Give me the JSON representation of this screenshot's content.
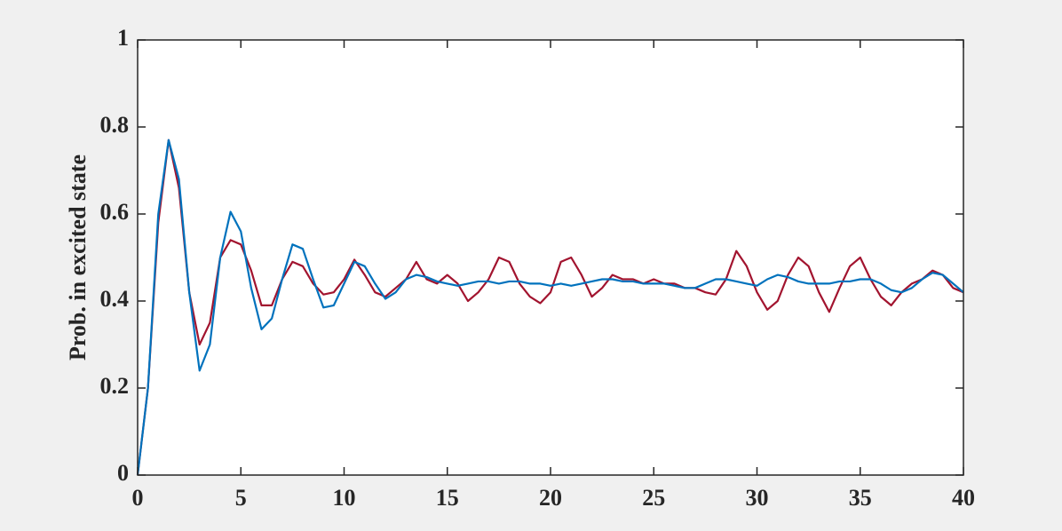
{
  "chart_data": {
    "type": "line",
    "ylabel": "Prob. in excited state",
    "x": [
      0,
      0.5,
      1,
      1.5,
      2,
      2.5,
      3,
      3.5,
      4,
      4.5,
      5,
      5.5,
      6,
      6.5,
      7,
      7.5,
      8,
      8.5,
      9,
      9.5,
      10,
      10.5,
      11,
      11.5,
      12,
      12.5,
      13,
      13.5,
      14,
      14.5,
      15,
      15.5,
      16,
      16.5,
      17,
      17.5,
      18,
      18.5,
      19,
      19.5,
      20,
      20.5,
      21,
      21.5,
      22,
      22.5,
      23,
      23.5,
      24,
      24.5,
      25,
      25.5,
      26,
      26.5,
      27,
      27.5,
      28,
      28.5,
      29,
      29.5,
      30,
      30.5,
      31,
      31.5,
      32,
      32.5,
      33,
      33.5,
      34,
      34.5,
      35,
      35.5,
      36,
      36.5,
      37,
      37.5,
      38,
      38.5,
      39,
      39.5,
      40
    ],
    "series": [
      {
        "color": "#a2142f",
        "values": [
          0,
          0.2,
          0.58,
          0.77,
          0.66,
          0.42,
          0.3,
          0.35,
          0.5,
          0.54,
          0.53,
          0.47,
          0.39,
          0.39,
          0.45,
          0.49,
          0.48,
          0.44,
          0.415,
          0.42,
          0.45,
          0.495,
          0.46,
          0.42,
          0.41,
          0.43,
          0.45,
          0.49,
          0.45,
          0.44,
          0.46,
          0.44,
          0.4,
          0.42,
          0.45,
          0.5,
          0.49,
          0.44,
          0.41,
          0.395,
          0.42,
          0.49,
          0.5,
          0.46,
          0.41,
          0.43,
          0.46,
          0.45,
          0.45,
          0.44,
          0.45,
          0.44,
          0.44,
          0.43,
          0.43,
          0.42,
          0.415,
          0.45,
          0.515,
          0.48,
          0.42,
          0.38,
          0.4,
          0.46,
          0.5,
          0.48,
          0.42,
          0.375,
          0.43,
          0.48,
          0.5,
          0.45,
          0.41,
          0.39,
          0.42,
          0.44,
          0.45,
          0.47,
          0.46,
          0.43,
          0.42
        ]
      },
      {
        "color": "#0072bd",
        "values": [
          0,
          0.2,
          0.6,
          0.77,
          0.68,
          0.42,
          0.24,
          0.3,
          0.5,
          0.605,
          0.56,
          0.43,
          0.335,
          0.36,
          0.45,
          0.53,
          0.52,
          0.45,
          0.385,
          0.39,
          0.44,
          0.49,
          0.48,
          0.44,
          0.405,
          0.42,
          0.45,
          0.46,
          0.455,
          0.445,
          0.44,
          0.435,
          0.44,
          0.445,
          0.445,
          0.44,
          0.445,
          0.445,
          0.44,
          0.44,
          0.435,
          0.44,
          0.435,
          0.44,
          0.445,
          0.45,
          0.45,
          0.445,
          0.445,
          0.44,
          0.44,
          0.44,
          0.435,
          0.43,
          0.43,
          0.44,
          0.45,
          0.45,
          0.445,
          0.44,
          0.435,
          0.45,
          0.46,
          0.455,
          0.445,
          0.44,
          0.44,
          0.44,
          0.445,
          0.445,
          0.45,
          0.45,
          0.44,
          0.425,
          0.42,
          0.43,
          0.45,
          0.465,
          0.46,
          0.44,
          0.42
        ]
      }
    ],
    "xlim": [
      0,
      40
    ],
    "xticks": [
      0,
      5,
      10,
      15,
      20,
      25,
      30,
      35,
      40
    ],
    "ylim": [
      0,
      1
    ],
    "yticks": [
      0,
      0.2,
      0.4,
      0.6,
      0.8,
      1
    ]
  }
}
